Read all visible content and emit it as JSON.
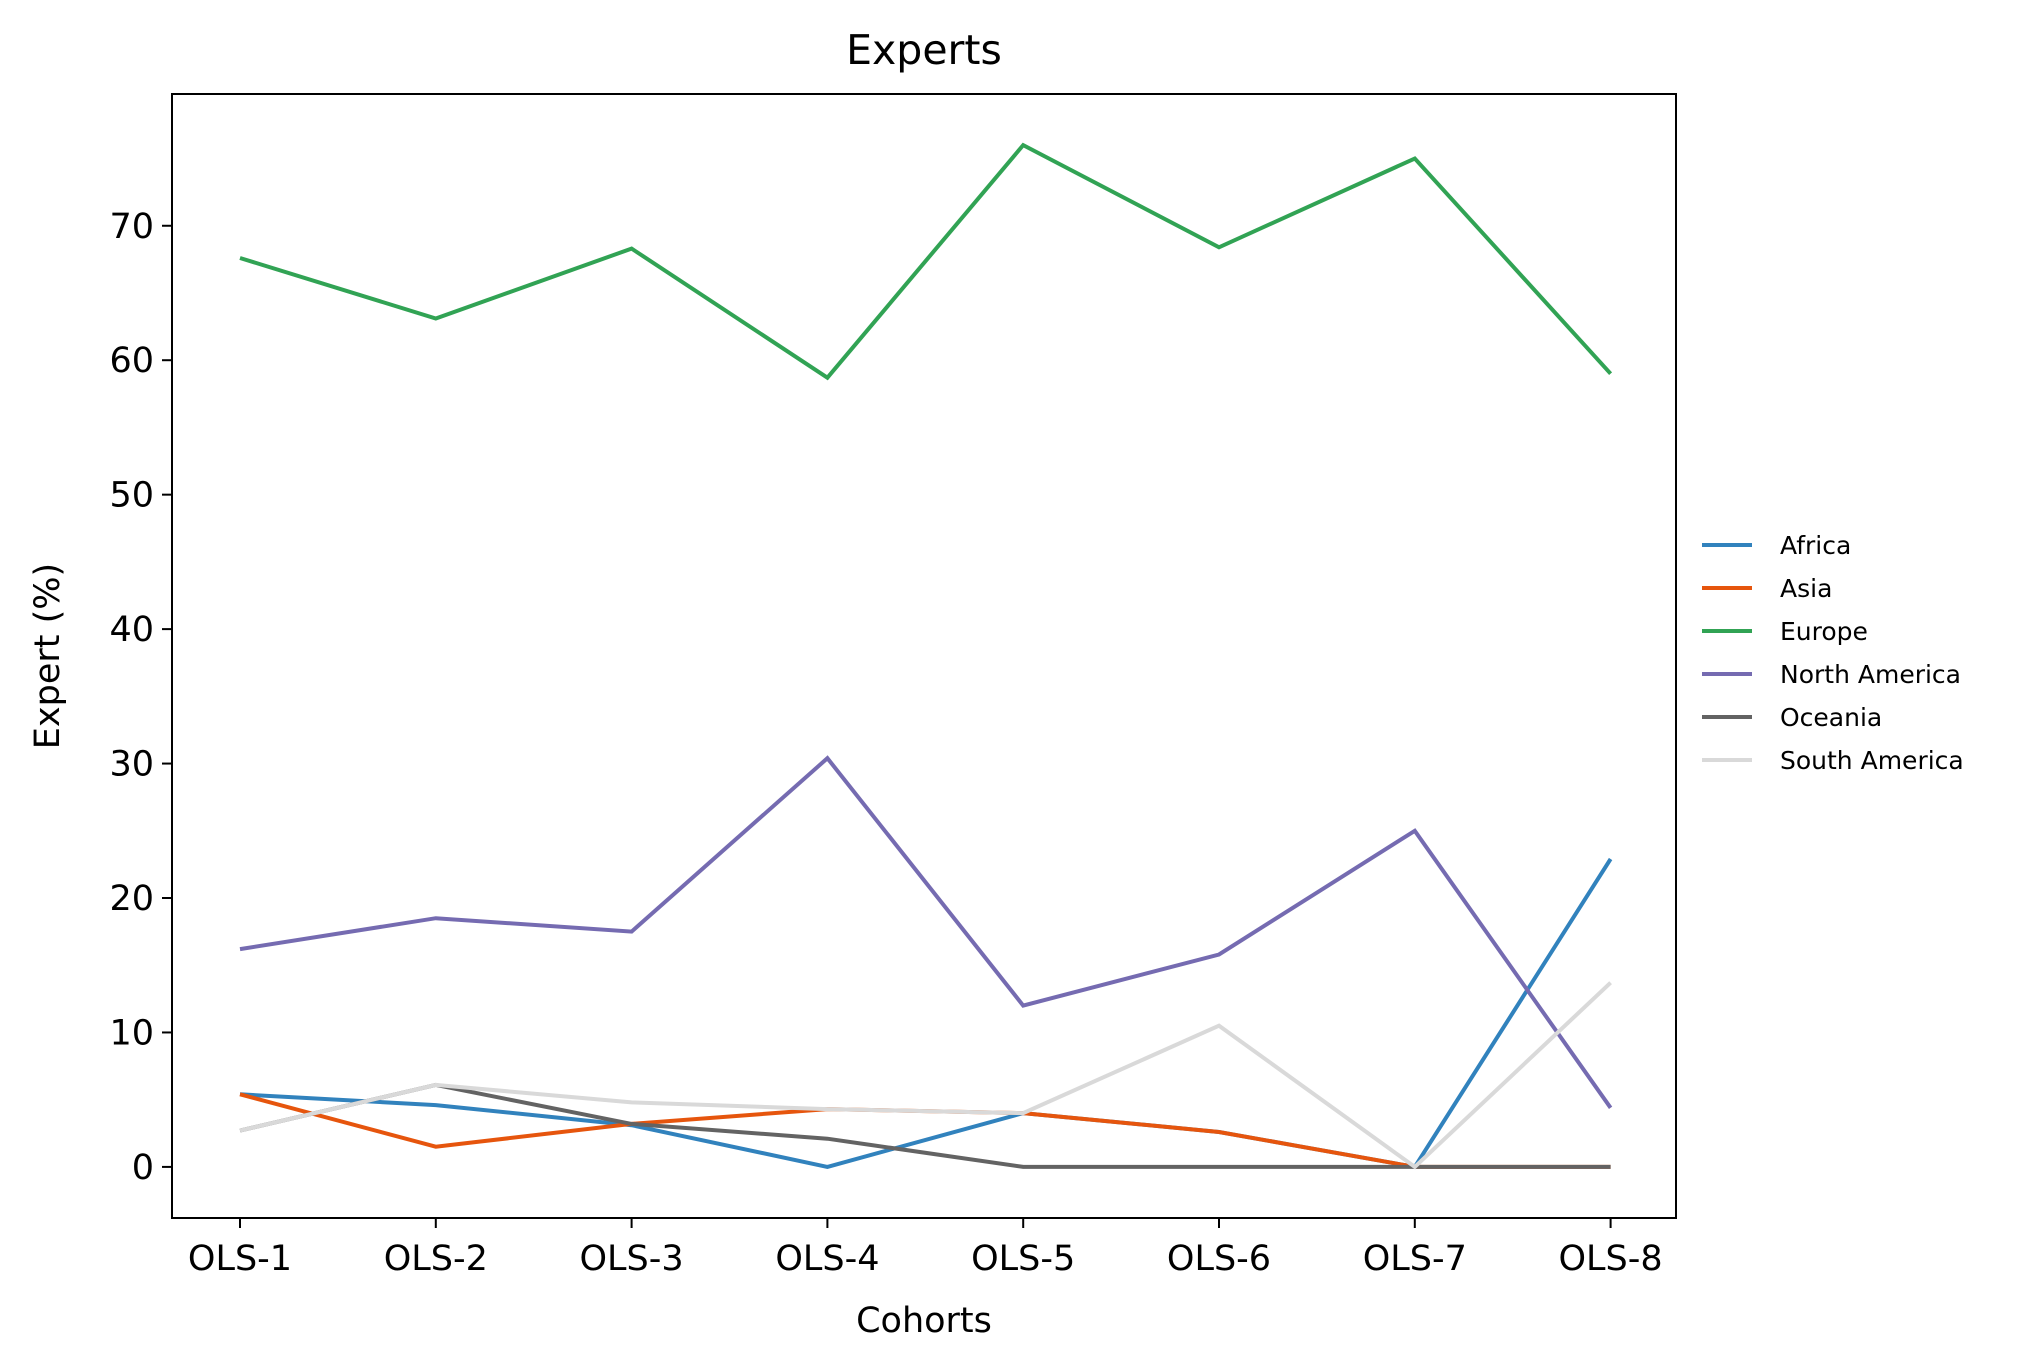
{
  "chart_data": {
    "type": "line",
    "title": "Experts",
    "xlabel": "Cohorts",
    "ylabel": "Expert (%)",
    "categories": [
      "OLS-1",
      "OLS-2",
      "OLS-3",
      "OLS-4",
      "OLS-5",
      "OLS-6",
      "OLS-7",
      "OLS-8"
    ],
    "yticks": [
      0,
      10,
      20,
      30,
      40,
      50,
      60,
      70
    ],
    "ylim": [
      -3.8,
      79.8
    ],
    "grid": false,
    "legend_position": "right",
    "series": [
      {
        "name": "Africa",
        "color": "#3182bd",
        "values": [
          5.4,
          4.6,
          3.1,
          0.0,
          4.0,
          2.6,
          0.0,
          22.9
        ]
      },
      {
        "name": "Asia",
        "color": "#e6550d",
        "values": [
          5.4,
          1.5,
          3.2,
          4.3,
          4.0,
          2.6,
          0.0,
          0.0
        ]
      },
      {
        "name": "Europe",
        "color": "#31a354",
        "values": [
          67.6,
          63.1,
          68.3,
          58.7,
          76.0,
          68.4,
          75.0,
          59.0
        ]
      },
      {
        "name": "North America",
        "color": "#756bb1",
        "values": [
          16.2,
          18.5,
          17.5,
          30.4,
          12.0,
          15.8,
          25.0,
          4.4
        ]
      },
      {
        "name": "Oceania",
        "color": "#636363",
        "values": [
          2.7,
          6.1,
          3.2,
          2.1,
          0.0,
          0.0,
          0.0,
          0.0
        ]
      },
      {
        "name": "South America",
        "color": "#d9d9d9",
        "values": [
          2.7,
          6.1,
          4.8,
          4.3,
          4.0,
          10.5,
          0.0,
          13.7
        ]
      }
    ]
  }
}
